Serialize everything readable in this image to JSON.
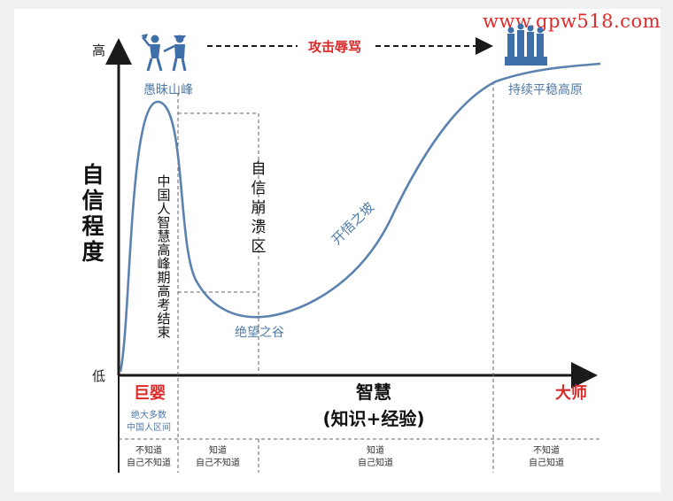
{
  "watermark": "www.gpw518.com",
  "y_axis": {
    "title": "自信程度",
    "high": "高",
    "low": "低"
  },
  "x_axis": {
    "title_line1": "智慧",
    "title_line2": "(知识+经验)",
    "left_label": "巨婴",
    "right_label": "大师"
  },
  "peak_label": "愚昧山峰",
  "valley_label": "绝望之谷",
  "slope_label": "开悟之坡",
  "plateau_label": "持续平稳高原",
  "attack_label": "攻击辱骂",
  "collapse_zone": "自信崩溃区",
  "exam_note": "中国人智慧高峰期高考结束",
  "majority_note": {
    "line1": "绝大多数",
    "line2": "中国人区间"
  },
  "stages": [
    {
      "line1": "不知道",
      "line2": "自己不知道"
    },
    {
      "line1": "知道",
      "line2": "自己不知道"
    },
    {
      "line1": "知道",
      "line2": "自己知道"
    },
    {
      "line1": "不知道",
      "line2": "自己知道"
    }
  ],
  "colors": {
    "curve": "#5b82b0",
    "label_blue": "#4f7aa8",
    "accent_red": "#d92a2a",
    "axis": "#1a1a1a"
  },
  "icons": {
    "arguing_people": "arguing-people-icon",
    "audience_group": "audience-group-icon"
  }
}
